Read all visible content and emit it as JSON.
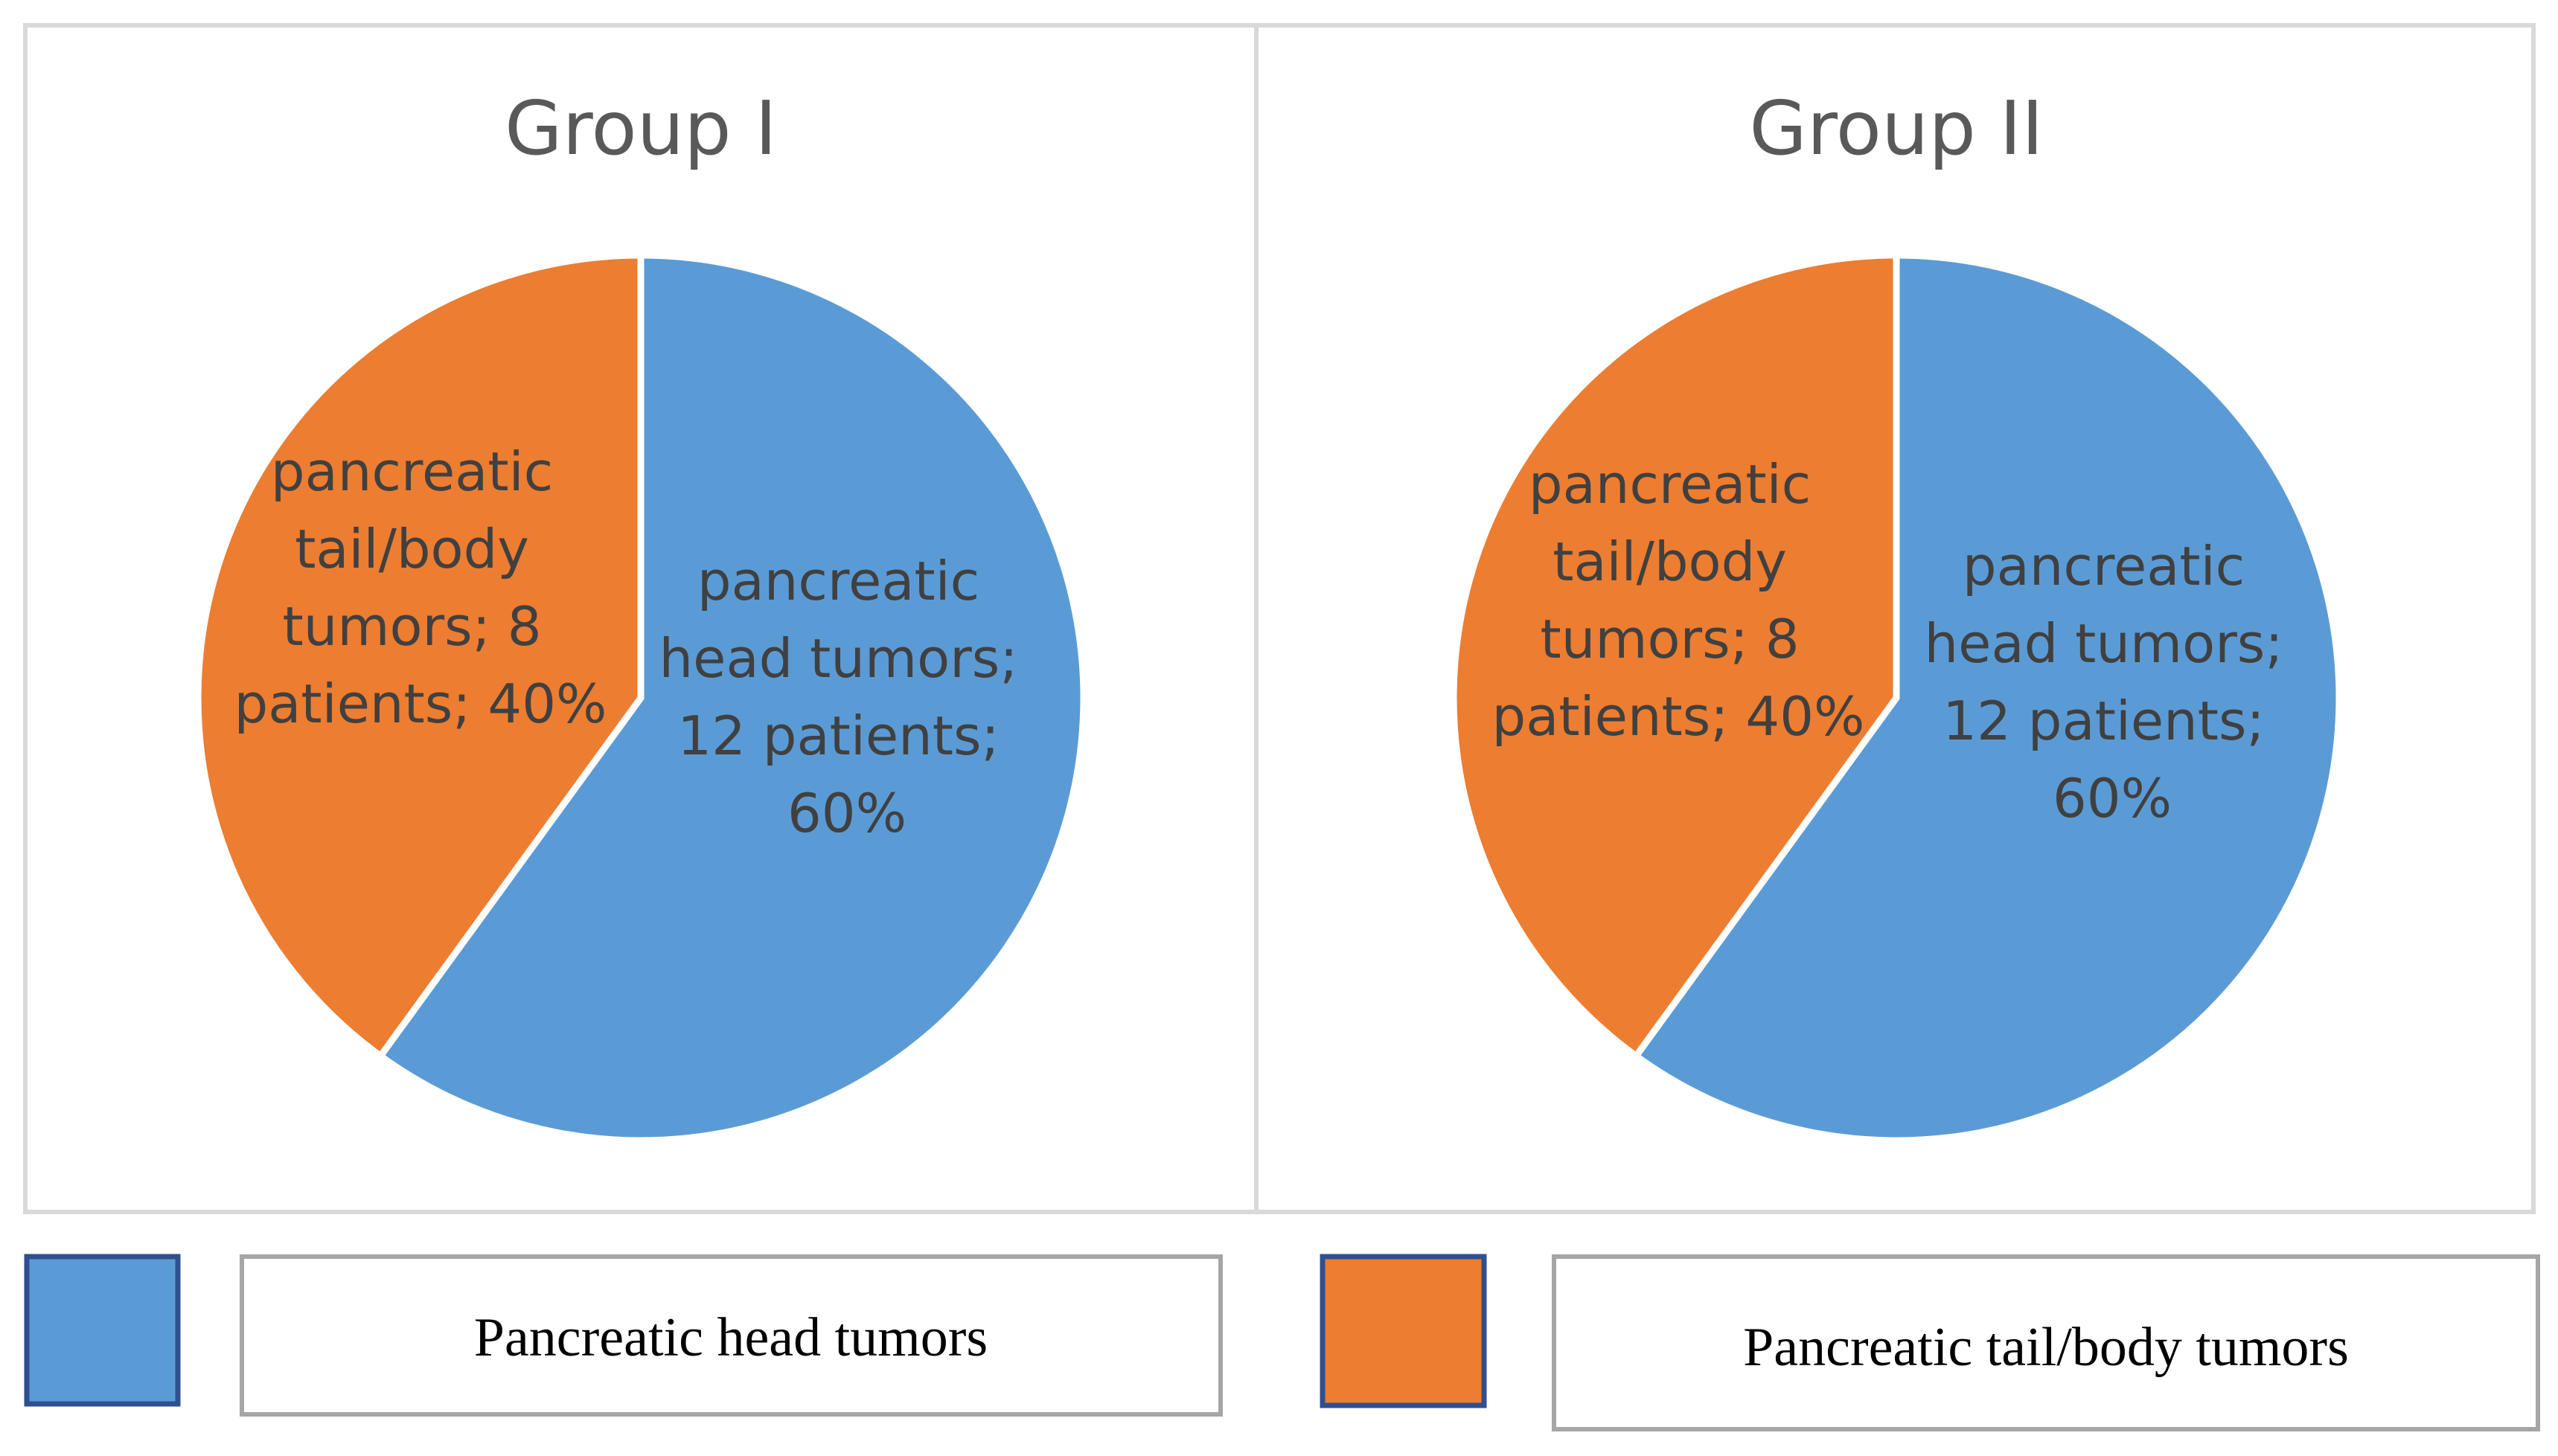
{
  "colors": {
    "head": "#5B9BD5",
    "tail": "#ED7D31",
    "frame": "#D9D9D9",
    "legend_swatch_border": "#2F4F8F",
    "legend_box_border": "#A6A6A6"
  },
  "chart_data": [
    {
      "type": "pie",
      "title": "Group I",
      "slices": [
        {
          "name": "pancreatic head tumors",
          "count": 12,
          "percent": 60,
          "label_lines": [
            "pancreatic",
            "head tumors;",
            "12 patients;",
            "60%"
          ]
        },
        {
          "name": "pancreatic tail/body tumors",
          "count": 8,
          "percent": 40,
          "label_lines": [
            "pancreatic",
            "tail/body",
            "tumors; 8",
            "patients; 40%"
          ]
        }
      ]
    },
    {
      "type": "pie",
      "title": "Group II",
      "slices": [
        {
          "name": "pancreatic head tumors",
          "count": 12,
          "percent": 60,
          "label_lines": [
            "pancreatic",
            "head tumors;",
            "12 patients;",
            "60%"
          ]
        },
        {
          "name": "pancreatic tail/body tumors",
          "count": 8,
          "percent": 40,
          "label_lines": [
            "pancreatic",
            "tail/body",
            "tumors; 8",
            "patients; 40%"
          ]
        }
      ]
    }
  ],
  "legend": [
    {
      "label": "Pancreatic head tumors",
      "color": "#5B9BD5"
    },
    {
      "label": "Pancreatic tail/body tumors",
      "color": "#ED7D31"
    }
  ]
}
